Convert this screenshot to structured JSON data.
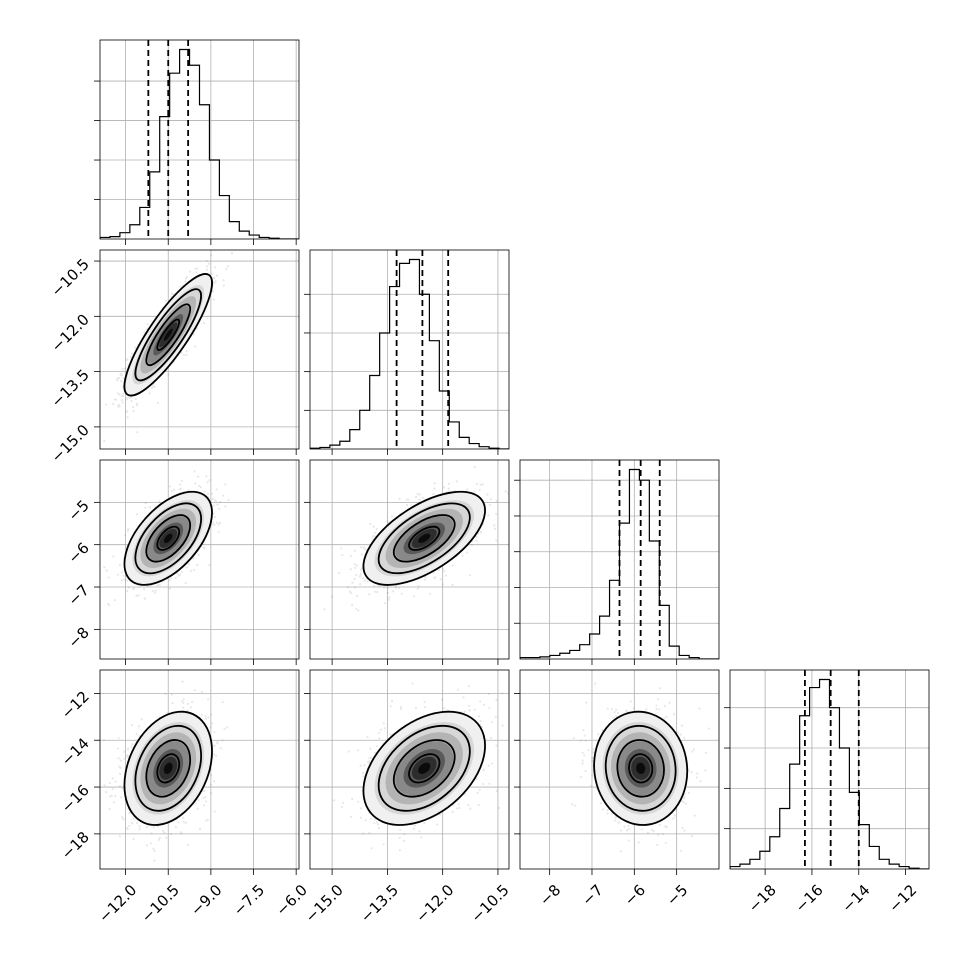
{
  "chart_data": {
    "type": "corner",
    "parameters": [
      {
        "id": "p0",
        "range": [
          -12.9,
          -5.9
        ],
        "ticks": [
          -12.0,
          -10.5,
          -9.0,
          -7.5,
          -6.0
        ],
        "tick_labels": [
          "−12.0",
          "−10.5",
          "−9.0",
          "−7.5",
          "−6.0"
        ],
        "mean": -10.5,
        "sd": 0.7,
        "quantiles": [
          -11.2,
          -10.5,
          -9.8
        ],
        "hist_values": [
          2,
          3,
          8,
          18,
          40,
          85,
          155,
          210,
          240,
          220,
          170,
          100,
          55,
          22,
          10,
          5,
          2,
          1,
          0,
          0
        ],
        "hist_yticks": [
          50,
          100,
          150,
          200
        ]
      },
      {
        "id": "p1",
        "range": [
          -15.6,
          -10.2
        ],
        "ticks": [
          -15.0,
          -13.5,
          -12.0,
          -10.5
        ],
        "tick_labels": [
          "−15.0",
          "−13.5",
          "−12.0",
          "−10.5"
        ],
        "mean": -12.5,
        "sd": 0.75,
        "quantiles": [
          -13.25,
          -12.55,
          -11.85
        ],
        "hist_values": [
          1,
          2,
          5,
          10,
          25,
          50,
          95,
          150,
          210,
          240,
          245,
          200,
          140,
          75,
          35,
          15,
          7,
          3,
          1,
          0
        ],
        "hist_yticks": [
          50,
          100,
          150,
          200
        ]
      },
      {
        "id": "p2",
        "range": [
          -8.7,
          -4.0
        ],
        "ticks": [
          -8,
          -7,
          -6,
          -5
        ],
        "tick_labels": [
          "−8",
          "−7",
          "−6",
          "−5"
        ],
        "mean": -5.85,
        "sd": 0.5,
        "quantiles": [
          -6.35,
          -5.85,
          -5.4
        ],
        "hist_values": [
          2,
          2,
          3,
          5,
          8,
          12,
          20,
          35,
          60,
          110,
          190,
          265,
          250,
          165,
          75,
          18,
          5,
          2,
          0,
          0
        ],
        "hist_yticks": [
          50,
          100,
          150,
          200,
          250
        ]
      },
      {
        "id": "p3",
        "range": [
          -19.5,
          -11.0
        ],
        "ticks": [
          -18,
          -16,
          -14,
          -12
        ],
        "tick_labels": [
          "−18",
          "−16",
          "−14",
          "−12"
        ],
        "mean": -15.2,
        "sd": 1.1,
        "quantiles": [
          -16.3,
          -15.2,
          -14.0
        ],
        "hist_values": [
          3,
          6,
          12,
          22,
          40,
          75,
          130,
          190,
          225,
          235,
          200,
          150,
          95,
          55,
          28,
          12,
          6,
          3,
          1,
          0
        ],
        "hist_yticks": [
          50,
          100,
          150,
          200
        ]
      }
    ],
    "correlations": [
      [
        1.0,
        0.85,
        0.55,
        0.3
      ],
      [
        0.85,
        1.0,
        0.6,
        0.4
      ],
      [
        0.55,
        0.6,
        1.0,
        -0.05
      ],
      [
        0.3,
        0.4,
        -0.05,
        1.0
      ]
    ],
    "contour_levels_sigma": [
      0.5,
      1.0,
      1.5,
      2.0
    ],
    "grid": true,
    "colors": {
      "line": "#000000",
      "points": "#7f7f7f",
      "density": "#000000"
    }
  }
}
